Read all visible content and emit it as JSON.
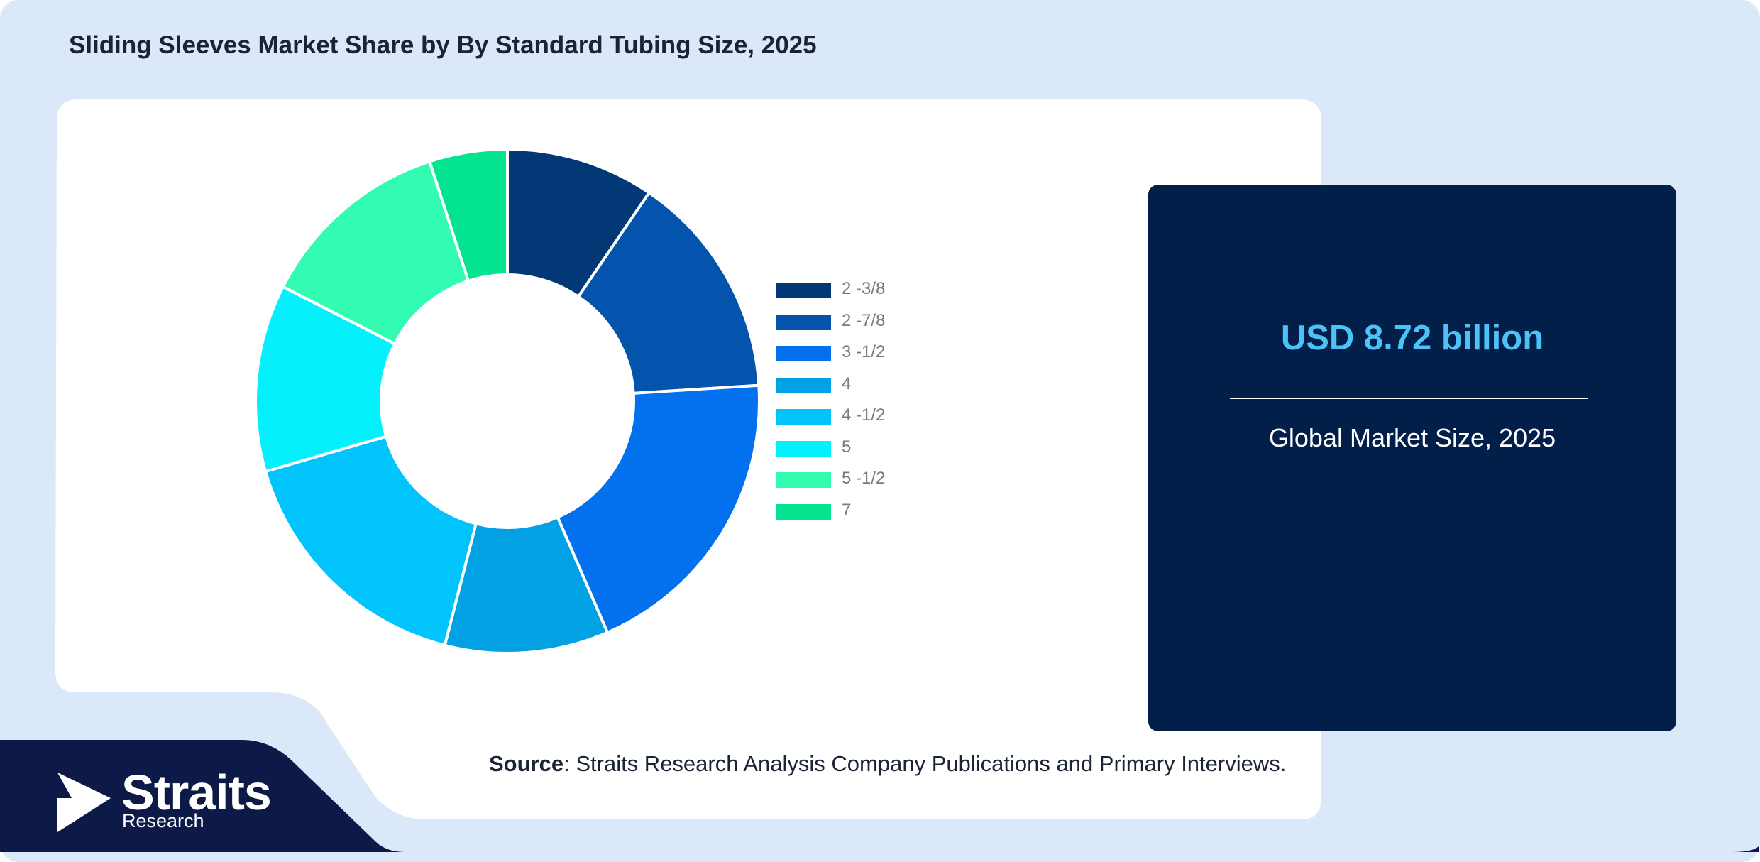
{
  "title": "Sliding Sleeves Market Share by By Standard Tubing Size, 2025",
  "info": {
    "value": "USD 8.72 billion",
    "label": "Global Market Size, 2025"
  },
  "source": {
    "label": "Source",
    "text": ": Straits Research Analysis Company Publications and Primary Interviews."
  },
  "logo": {
    "name": "Straits",
    "sub": "Research"
  },
  "colors": {
    "background": "#dbe8f9",
    "panel": "#ffffff",
    "info_box": "#011f48",
    "info_value": "#4cc2f7",
    "logo_band": "#0d1a48"
  },
  "chart_data": {
    "type": "pie",
    "donut": true,
    "title": "Sliding Sleeves Market Share by By Standard Tubing Size, 2025",
    "categories": [
      "2 -3/8",
      "2 -7/8",
      "3 -1/2",
      "4",
      "4 -1/2",
      "5",
      "5 -1/2",
      "7"
    ],
    "values": [
      9.5,
      14.5,
      19.5,
      10.5,
      16.5,
      12.0,
      12.5,
      5.0
    ],
    "colors": [
      "#023876",
      "#0453ac",
      "#0371ee",
      "#02a1e3",
      "#02c4fc",
      "#03f0fc",
      "#32fcb1",
      "#03e390"
    ],
    "legend_position": "right"
  }
}
